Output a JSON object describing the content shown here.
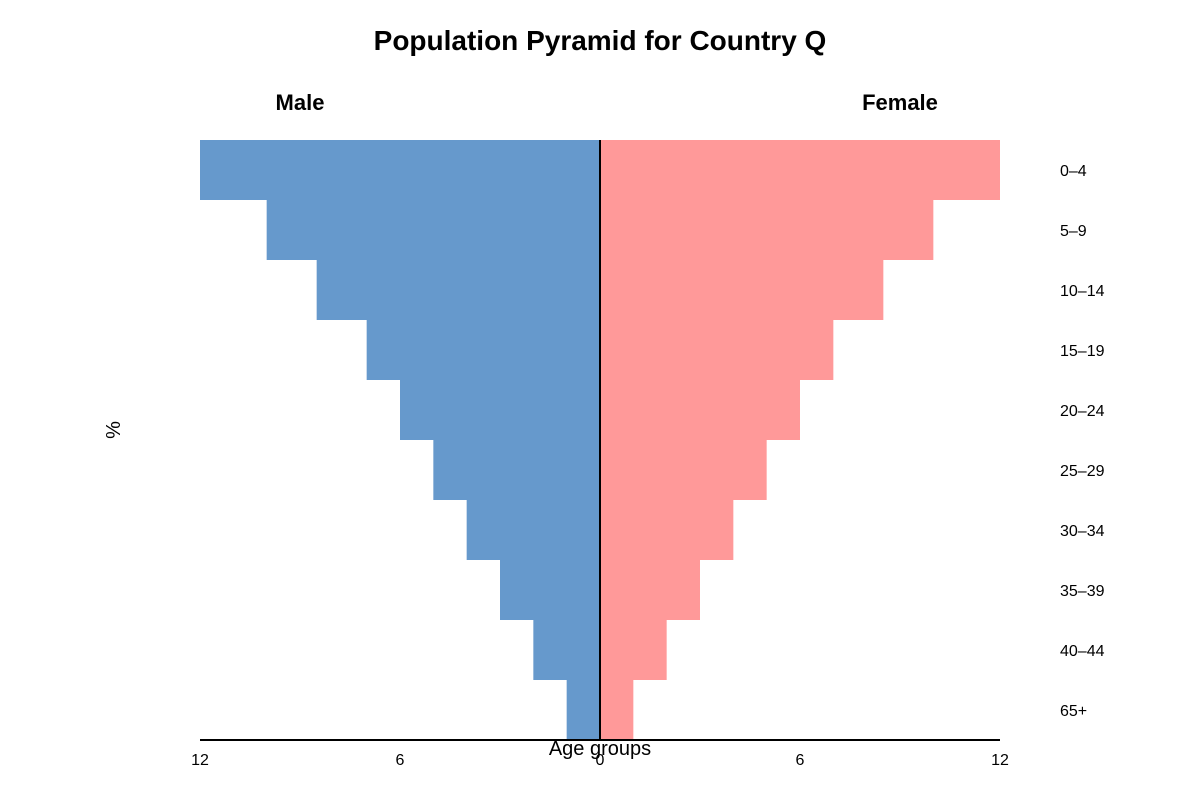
{
  "chart_data": {
    "type": "bar",
    "orientation": "horizontal-pyramid",
    "title": "Population Pyramid for Country Q",
    "xlabel": "Age groups",
    "ylabel": "%",
    "categories": [
      "0–4",
      "5–9",
      "10–14",
      "15–19",
      "20–24",
      "25–29",
      "30–34",
      "35–39",
      "40–44",
      "65+"
    ],
    "series": [
      {
        "name": "Male",
        "values": [
          12,
          10,
          8.5,
          7,
          6,
          5,
          4,
          3,
          2,
          1
        ]
      },
      {
        "name": "Female",
        "values": [
          12,
          10,
          8.5,
          7,
          6,
          5,
          4,
          3,
          2,
          1
        ]
      }
    ],
    "xlim": [
      -12,
      12
    ],
    "x_ticks": [
      12,
      6,
      0,
      6,
      12
    ],
    "grid": false,
    "legend": "none",
    "colors": {
      "Male": "#6699cc",
      "Female": "#ff9999"
    }
  }
}
